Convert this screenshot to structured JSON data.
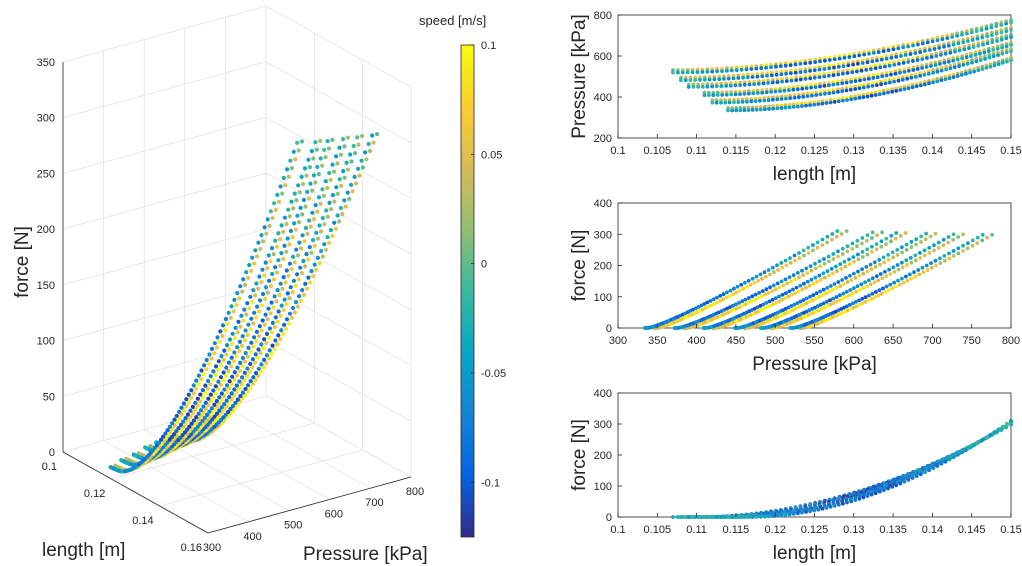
{
  "colorbar": {
    "label": "speed [m/s]",
    "ticks": [
      {
        "v": 0.1,
        "t": "0.1"
      },
      {
        "v": 0.05,
        "t": "0.05"
      },
      {
        "v": 0,
        "t": "0"
      },
      {
        "v": -0.05,
        "t": "-0.05"
      },
      {
        "v": -0.1,
        "t": "-0.1"
      }
    ],
    "range": [
      -0.125,
      0.1
    ]
  },
  "colormap": [
    "#352a87",
    "#0363e1",
    "#1485d4",
    "#06a7c6",
    "#38b99e",
    "#92bf73",
    "#d9ba56",
    "#fcce2e",
    "#f9fb0e"
  ],
  "chart_data": [
    {
      "id": "3d",
      "type": "scatter",
      "xlabel": "length [m]",
      "ylabel": "Pressure [kPa]",
      "zlabel": "force [N]",
      "xlim": [
        0.1,
        0.16
      ],
      "ylim": [
        300,
        800
      ],
      "zlim": [
        0,
        350
      ],
      "xticks": [
        {
          "v": 0.1,
          "t": "0.1"
        },
        {
          "v": 0.12,
          "t": "0.12"
        },
        {
          "v": 0.14,
          "t": "0.14"
        },
        {
          "v": 0.16,
          "t": "0.16"
        }
      ],
      "yticks": [
        {
          "v": 300,
          "t": "300"
        },
        {
          "v": 400,
          "t": "400"
        },
        {
          "v": 500,
          "t": "500"
        },
        {
          "v": 600,
          "t": "600"
        },
        {
          "v": 700,
          "t": "700"
        },
        {
          "v": 800,
          "t": "800"
        }
      ],
      "zticks": [
        {
          "v": 0,
          "t": "0"
        },
        {
          "v": 50,
          "t": "50"
        },
        {
          "v": 100,
          "t": "100"
        },
        {
          "v": 150,
          "t": "150"
        },
        {
          "v": 200,
          "t": "200"
        },
        {
          "v": 250,
          "t": "250"
        },
        {
          "v": 300,
          "t": "300"
        },
        {
          "v": 350,
          "t": "350"
        }
      ],
      "grid": true,
      "colored_by": "speed [m/s]"
    },
    {
      "id": "p-vs-l",
      "type": "scatter",
      "xlabel": "length [m]",
      "ylabel": "Pressure [kPa]",
      "xlim": [
        0.1,
        0.15
      ],
      "ylim": [
        200,
        800
      ],
      "xticks": [
        {
          "v": 0.1,
          "t": "0.1"
        },
        {
          "v": 0.105,
          "t": "0.105"
        },
        {
          "v": 0.11,
          "t": "0.11"
        },
        {
          "v": 0.115,
          "t": "0.115"
        },
        {
          "v": 0.12,
          "t": "0.12"
        },
        {
          "v": 0.125,
          "t": "0.125"
        },
        {
          "v": 0.13,
          "t": "0.13"
        },
        {
          "v": 0.135,
          "t": "0.135"
        },
        {
          "v": 0.14,
          "t": "0.14"
        },
        {
          "v": 0.145,
          "t": "0.145"
        },
        {
          "v": 0.15,
          "t": "0.15"
        }
      ],
      "yticks": [
        {
          "v": 200,
          "t": "200"
        },
        {
          "v": 400,
          "t": "400"
        },
        {
          "v": 600,
          "t": "600"
        },
        {
          "v": 800,
          "t": "800"
        }
      ],
      "grid": false,
      "colored_by": "speed [m/s]"
    },
    {
      "id": "f-vs-p",
      "type": "scatter",
      "xlabel": "Pressure [kPa]",
      "ylabel": "force [N]",
      "xlim": [
        300,
        800
      ],
      "ylim": [
        0,
        400
      ],
      "xticks": [
        {
          "v": 300,
          "t": "300"
        },
        {
          "v": 350,
          "t": "350"
        },
        {
          "v": 400,
          "t": "400"
        },
        {
          "v": 450,
          "t": "450"
        },
        {
          "v": 500,
          "t": "500"
        },
        {
          "v": 550,
          "t": "550"
        },
        {
          "v": 600,
          "t": "600"
        },
        {
          "v": 650,
          "t": "650"
        },
        {
          "v": 700,
          "t": "700"
        },
        {
          "v": 750,
          "t": "750"
        },
        {
          "v": 800,
          "t": "800"
        }
      ],
      "yticks": [
        {
          "v": 0,
          "t": "0"
        },
        {
          "v": 100,
          "t": "100"
        },
        {
          "v": 200,
          "t": "200"
        },
        {
          "v": 300,
          "t": "300"
        },
        {
          "v": 400,
          "t": "400"
        }
      ],
      "grid": false,
      "colored_by": "speed [m/s]"
    },
    {
      "id": "f-vs-l",
      "type": "scatter",
      "xlabel": "length [m]",
      "ylabel": "force [N]",
      "xlim": [
        0.1,
        0.15
      ],
      "ylim": [
        0,
        400
      ],
      "xticks": [
        {
          "v": 0.1,
          "t": "0.1"
        },
        {
          "v": 0.105,
          "t": "0.105"
        },
        {
          "v": 0.11,
          "t": "0.11"
        },
        {
          "v": 0.115,
          "t": "0.115"
        },
        {
          "v": 0.12,
          "t": "0.12"
        },
        {
          "v": 0.125,
          "t": "0.125"
        },
        {
          "v": 0.13,
          "t": "0.13"
        },
        {
          "v": 0.135,
          "t": "0.135"
        },
        {
          "v": 0.14,
          "t": "0.14"
        },
        {
          "v": 0.145,
          "t": "0.145"
        },
        {
          "v": 0.15,
          "t": "0.15"
        }
      ],
      "yticks": [
        {
          "v": 0,
          "t": "0"
        },
        {
          "v": 100,
          "t": "100"
        },
        {
          "v": 200,
          "t": "200"
        },
        {
          "v": 300,
          "t": "300"
        },
        {
          "v": 400,
          "t": "400"
        }
      ],
      "grid": false,
      "colored_by": "speed [m/s]"
    }
  ],
  "cycles": [
    {
      "L0": 0.107,
      "P0": 525,
      "Pmax": 770,
      "Fmax": 298
    },
    {
      "L0": 0.108,
      "P0": 488,
      "Pmax": 733,
      "Fmax": 300
    },
    {
      "L0": 0.109,
      "P0": 455,
      "Pmax": 698,
      "Fmax": 302
    },
    {
      "L0": 0.111,
      "P0": 415,
      "Pmax": 660,
      "Fmax": 304
    },
    {
      "L0": 0.112,
      "P0": 378,
      "Pmax": 630,
      "Fmax": 306
    },
    {
      "L0": 0.114,
      "P0": 340,
      "Pmax": 585,
      "Fmax": 310
    }
  ]
}
